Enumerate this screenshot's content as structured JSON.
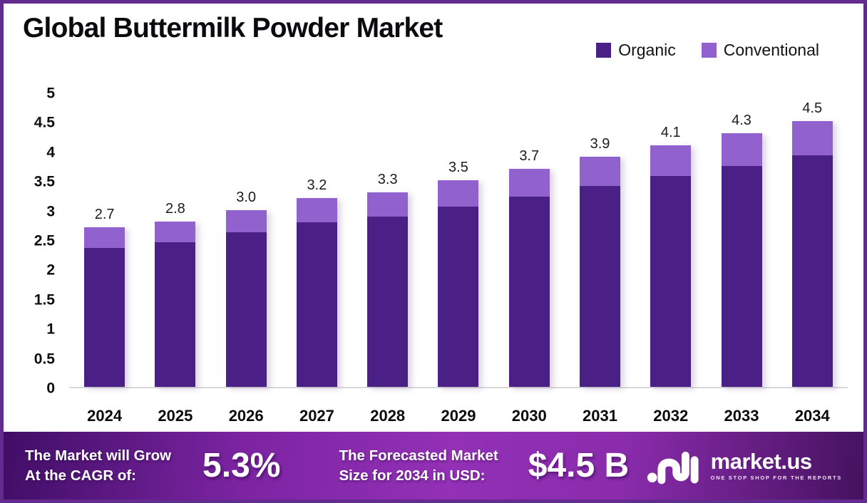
{
  "title": "Global Buttermilk Powder Market",
  "colors": {
    "organic": "#4B2086",
    "conventional": "#9162CE",
    "frame_border": "#632B8F",
    "axis_line": "#D9D9D9",
    "footer_gradient_left": "#400E66",
    "footer_gradient_mid": "#9330B6",
    "footer_gradient_right": "#45125F"
  },
  "legend": {
    "items": [
      {
        "label": "Organic",
        "color": "#4B2086"
      },
      {
        "label": "Conventional",
        "color": "#9162CE"
      }
    ]
  },
  "chart_data": {
    "type": "bar",
    "stacked": true,
    "title": "Global Buttermilk Powder Market",
    "categories": [
      "2024",
      "2025",
      "2026",
      "2027",
      "2028",
      "2029",
      "2030",
      "2031",
      "2032",
      "2033",
      "2034"
    ],
    "series": [
      {
        "name": "Organic",
        "color": "#4B2086",
        "values": [
          2.36,
          2.45,
          2.62,
          2.79,
          2.89,
          3.05,
          3.23,
          3.4,
          3.57,
          3.75,
          3.93
        ]
      },
      {
        "name": "Conventional",
        "color": "#9162CE",
        "values": [
          0.34,
          0.35,
          0.38,
          0.41,
          0.41,
          0.45,
          0.47,
          0.5,
          0.53,
          0.55,
          0.57
        ]
      }
    ],
    "totals": [
      2.7,
      2.8,
      3.0,
      3.2,
      3.3,
      3.5,
      3.7,
      3.9,
      4.1,
      4.3,
      4.5
    ],
    "total_labels": [
      "2.7",
      "2.8",
      "3.0",
      "3.2",
      "3.3",
      "3.5",
      "3.7",
      "3.9",
      "4.1",
      "4.3",
      "4.5"
    ],
    "ylim": [
      0,
      5
    ],
    "yticks": [
      "5",
      "4.5",
      "4",
      "3.5",
      "3",
      "2.5",
      "2",
      "1.5",
      "1",
      "0.5",
      "0"
    ],
    "grid": false,
    "legend_position": "top-right"
  },
  "footer": {
    "cagr_label_line1": "The Market will Grow",
    "cagr_label_line2": "At the CAGR of:",
    "cagr_value": "5.3%",
    "forecast_label_line1": "The Forecasted Market",
    "forecast_label_line2": "Size for 2034 in USD:",
    "forecast_value": "$4.5 B",
    "brand_name": "market.us",
    "brand_tagline": "ONE STOP SHOP FOR THE REPORTS"
  }
}
